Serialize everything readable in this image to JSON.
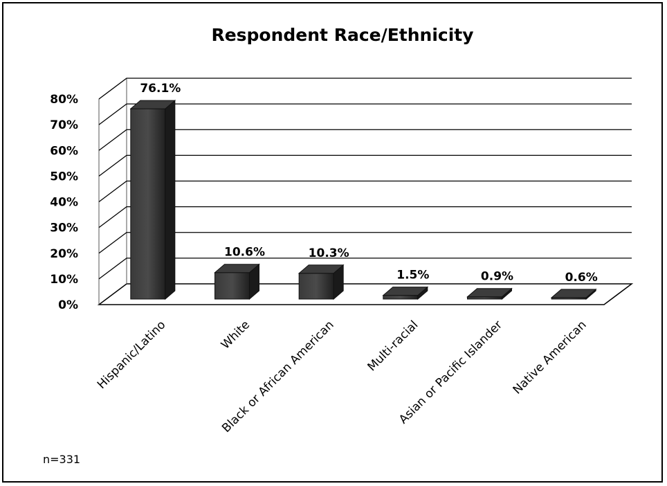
{
  "chart_data": {
    "type": "bar",
    "title": "Respondent Race/Ethnicity",
    "categories": [
      "Hispanic/Latino",
      "White",
      "Black or African American",
      "Multi-racial",
      "Asian or Pacific Islander",
      "Native American"
    ],
    "values": [
      76.1,
      10.6,
      10.3,
      1.5,
      0.9,
      0.6
    ],
    "data_labels": [
      "76.1%",
      "10.6%",
      "10.3%",
      "1.5%",
      "0.9%",
      "0.6%"
    ],
    "y_ticks": [
      "0%",
      "10%",
      "20%",
      "30%",
      "40%",
      "50%",
      "60%",
      "70%",
      "80%"
    ],
    "ylim": [
      0,
      80
    ],
    "grid": true,
    "style": "3d-column",
    "bar_color": "#2a2a2a",
    "note": "n=331"
  }
}
